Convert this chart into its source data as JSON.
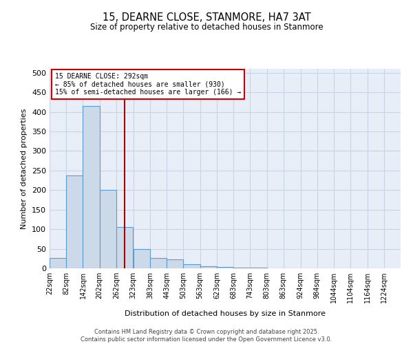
{
  "title": "15, DEARNE CLOSE, STANMORE, HA7 3AT",
  "subtitle": "Size of property relative to detached houses in Stanmore",
  "xlabel": "Distribution of detached houses by size in Stanmore",
  "ylabel": "Number of detached properties",
  "bin_labels": [
    "22sqm",
    "82sqm",
    "142sqm",
    "202sqm",
    "262sqm",
    "323sqm",
    "383sqm",
    "443sqm",
    "503sqm",
    "563sqm",
    "623sqm",
    "683sqm",
    "743sqm",
    "803sqm",
    "863sqm",
    "924sqm",
    "984sqm",
    "1044sqm",
    "1104sqm",
    "1164sqm",
    "1224sqm"
  ],
  "bin_edges": [
    22,
    82,
    142,
    202,
    262,
    323,
    383,
    443,
    503,
    563,
    623,
    683,
    743,
    803,
    863,
    924,
    984,
    1044,
    1104,
    1164,
    1224
  ],
  "bar_heights": [
    27,
    237,
    415,
    200,
    106,
    50,
    27,
    22,
    10,
    5,
    3,
    1,
    1,
    0,
    0,
    0,
    0,
    0,
    0,
    0
  ],
  "bar_color": "#ccd9e8",
  "bar_edge_color": "#5b9bd5",
  "property_size": 292,
  "property_label": "15 DEARNE CLOSE: 292sqm",
  "annotation_line1": "← 85% of detached houses are smaller (930)",
  "annotation_line2": "15% of semi-detached houses are larger (166) →",
  "annotation_box_color": "#cc0000",
  "vline_color": "#aa0000",
  "grid_color": "#c8d4e4",
  "bg_color": "#e8eef8",
  "footer_line1": "Contains HM Land Registry data © Crown copyright and database right 2025.",
  "footer_line2": "Contains public sector information licensed under the Open Government Licence v3.0.",
  "ylim": [
    0,
    510
  ],
  "figsize": [
    6.0,
    5.0
  ],
  "dpi": 100
}
